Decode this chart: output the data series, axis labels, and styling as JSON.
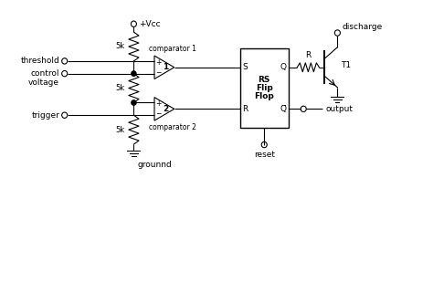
{
  "bg_color": "#ffffff",
  "line_color": "#000000",
  "text_color": "#000000",
  "font_size": 6.5,
  "labels": {
    "vcc": "+Vcc",
    "threshold": "threshold",
    "control_voltage": "control\nvoltage",
    "trigger": "trigger",
    "comparator1": "comparator 1",
    "comparator2": "comparator 2",
    "ground_label": "grounnd",
    "reset": "reset",
    "discharge": "discharge",
    "output": "output",
    "r_label": "R",
    "t1_label": "T1",
    "rs_line1": "RS",
    "rs_line2": "Flip",
    "rs_line3": "Flop",
    "res1": "5k",
    "res2": "5k",
    "res3": "5k",
    "s_pin": "S",
    "r_pin": "R",
    "q_pin": "Q",
    "qbar_pin": "Q̅",
    "comp1_num": "1",
    "comp2_num": "2"
  }
}
